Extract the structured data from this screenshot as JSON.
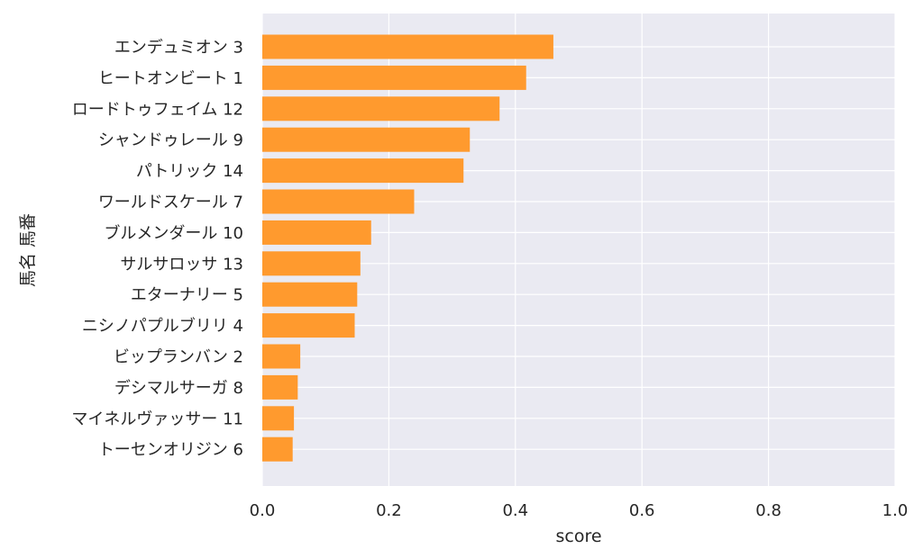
{
  "chart_data": {
    "type": "bar",
    "orientation": "horizontal",
    "categories": [
      "エンデュミオン 3",
      "ヒートオンビート 1",
      "ロードトゥフェイム 12",
      "シャンドゥレール 9",
      "パトリック 14",
      "ワールドスケール 7",
      "ブルメンダール 10",
      "サルサロッサ 13",
      "エターナリー 5",
      "ニシノパプルブリリ 4",
      "ビップランバン 2",
      "デシマルサーガ 8",
      "マイネルヴァッサー 11",
      "トーセンオリジン 6"
    ],
    "values": [
      0.46,
      0.417,
      0.375,
      0.328,
      0.318,
      0.24,
      0.172,
      0.155,
      0.15,
      0.146,
      0.06,
      0.056,
      0.05,
      0.048
    ],
    "xlabel": "score",
    "ylabel": "馬名 馬番",
    "xlim": [
      0,
      1.0
    ],
    "xticks": [
      "0.0",
      "0.2",
      "0.4",
      "0.6",
      "0.8",
      "1.0"
    ],
    "bar_color": "#ff9a2e",
    "background_color": "#eaeaf2",
    "grid": true
  }
}
